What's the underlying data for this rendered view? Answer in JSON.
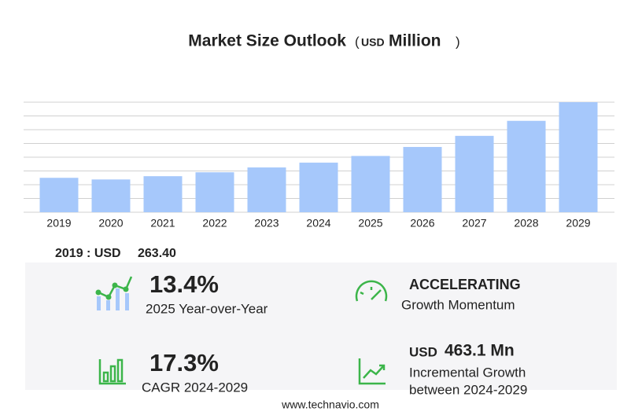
{
  "title": "Market Size Outlook",
  "title_unit": {
    "open": "(",
    "currency": "USD",
    "unit": "Million",
    "close": ")"
  },
  "chart_data": {
    "type": "bar",
    "categories": [
      "2019",
      "2020",
      "2021",
      "2022",
      "2023",
      "2024",
      "2025",
      "2026",
      "2027",
      "2028",
      "2029"
    ],
    "values": [
      263.4,
      251,
      276,
      306,
      343,
      380,
      431,
      500,
      585,
      700,
      843
    ],
    "color": "#a6c8fb",
    "ylim": [
      0,
      843
    ],
    "grid": true
  },
  "highlight": {
    "label": "2019 : USD",
    "value": "263.40"
  },
  "stats": {
    "yoy": {
      "value": "13.4%",
      "label": "2025 Year-over-Year"
    },
    "momentum": {
      "value": "ACCELERATING",
      "label": "Growth Momentum"
    },
    "cagr": {
      "value": "17.3%",
      "label": "CAGR 2024-2029"
    },
    "incremental": {
      "currency": "USD",
      "value": "463.1 Mn",
      "label_lines": [
        "Incremental Growth",
        "between 2024-2029"
      ]
    }
  },
  "footer": "www.technavio.com"
}
